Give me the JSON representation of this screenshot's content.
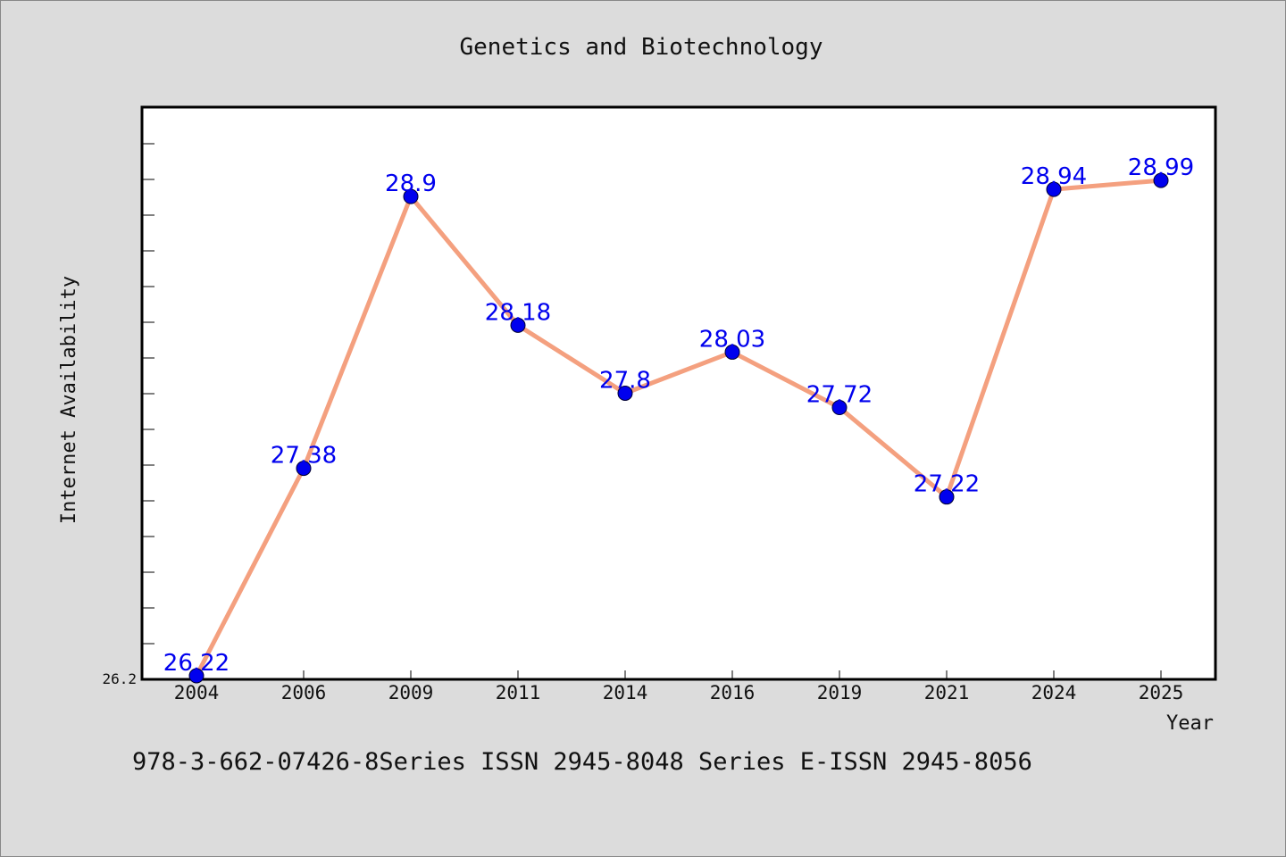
{
  "chart_data": {
    "type": "line",
    "title": "Genetics and Biotechnology",
    "xlabel": "Year",
    "ylabel": "Internet Availability",
    "categories": [
      "2004",
      "2006",
      "2009",
      "2011",
      "2014",
      "2016",
      "2019",
      "2021",
      "2024",
      "2025"
    ],
    "values": [
      26.22,
      27.38,
      28.9,
      28.18,
      27.8,
      28.03,
      27.72,
      27.22,
      28.94,
      28.99
    ],
    "data_labels": [
      "26.22",
      "27.38",
      "28.9",
      "28.18",
      "27.8",
      "28.03",
      "27.72",
      "27.22",
      "28.94",
      "28.99"
    ],
    "ytick_labels": [
      "26.2"
    ],
    "ylim": [
      26.2,
      29.4
    ],
    "grid": false,
    "line_color": "#f4a07f",
    "marker_color": "#0000ee",
    "label_color": "#0000ee"
  },
  "footer": {
    "text": "978-3-662-07426-8Series ISSN 2945-8048 Series E-ISSN 2945-8056"
  }
}
